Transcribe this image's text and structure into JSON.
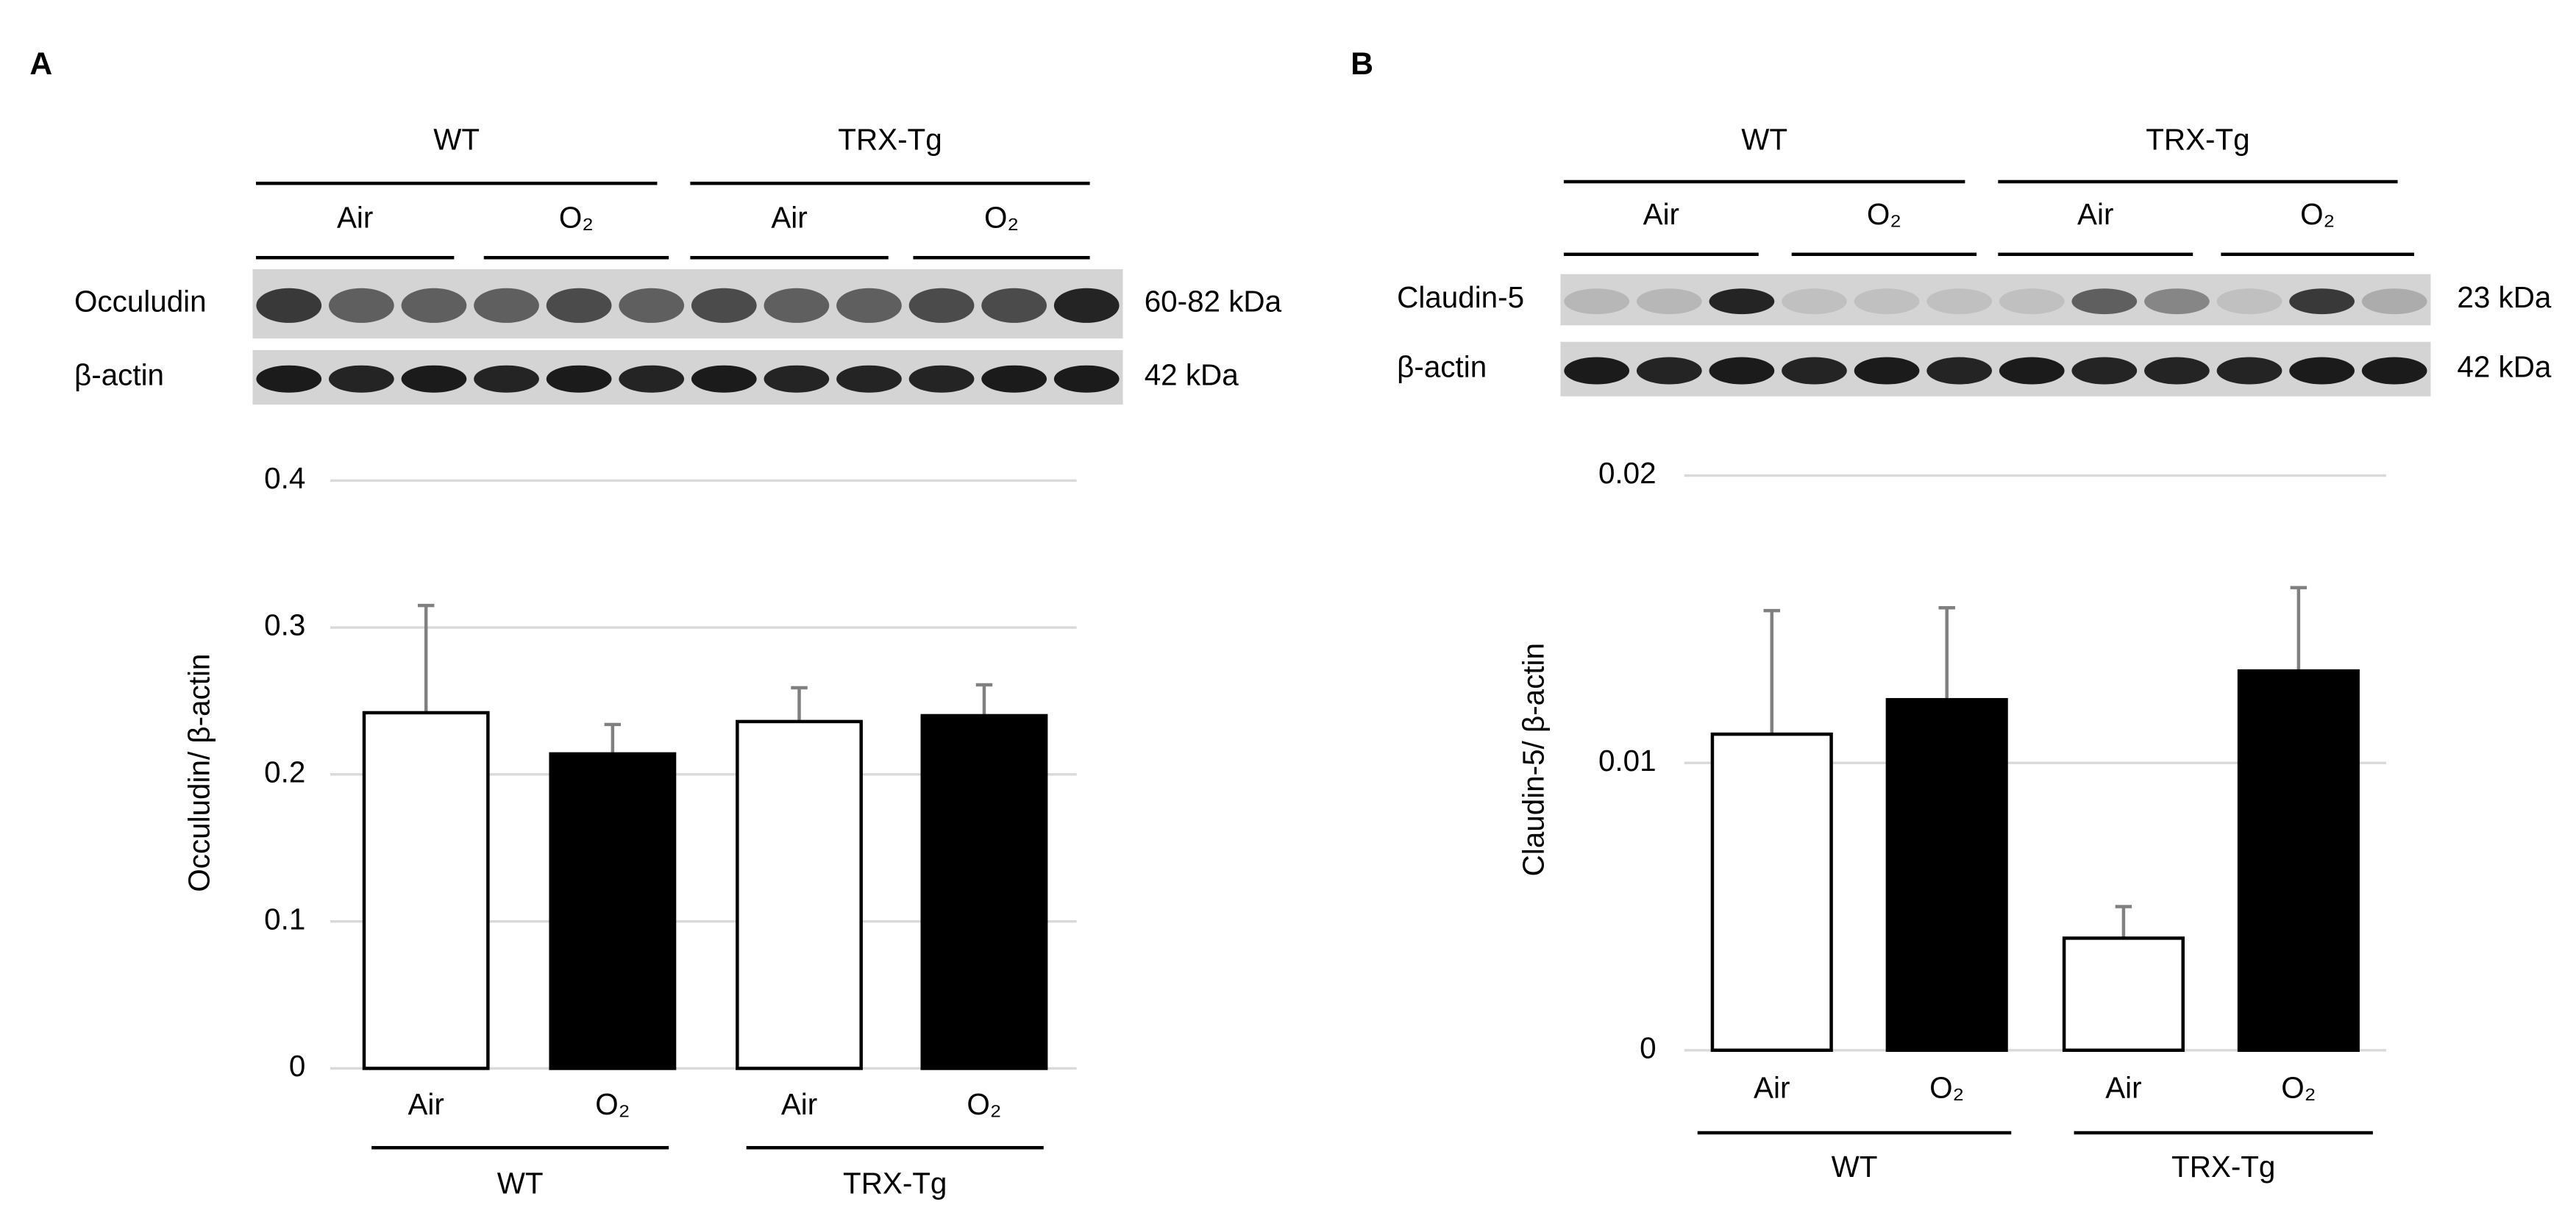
{
  "chart_data": [
    {
      "type": "bar",
      "panel_label": "A",
      "y_label": "Occuludin/ β-actin",
      "categories": [
        "Air",
        "O₂",
        "Air",
        "O₂"
      ],
      "groups": [
        "WT",
        "TRX-Tg"
      ],
      "values": [
        0.242,
        0.214,
        0.236,
        0.24
      ],
      "errors": [
        0.073,
        0.02,
        0.023,
        0.021
      ],
      "colors": [
        "#ffffff",
        "#000000",
        "#ffffff",
        "#000000"
      ],
      "ylim": [
        0,
        0.4
      ],
      "yticks": [
        0,
        0.1,
        0.2,
        0.3,
        0.4
      ],
      "grid": true,
      "blot": {
        "groups": [
          "WT",
          "TRX-Tg"
        ],
        "conditions": [
          "Air",
          "O₂",
          "Air",
          "O₂"
        ],
        "rows": [
          {
            "name": "Occuludin",
            "size": "60-82 kDa"
          },
          {
            "name": "β-actin",
            "size": "42 kDa"
          }
        ]
      }
    },
    {
      "type": "bar",
      "panel_label": "B",
      "y_label": "Claudin-5/ β-actin",
      "categories": [
        "Air",
        "O₂",
        "Air",
        "O₂"
      ],
      "groups": [
        "WT",
        "TRX-Tg"
      ],
      "values": [
        0.011,
        0.0122,
        0.0039,
        0.0132
      ],
      "errors": [
        0.0043,
        0.0032,
        0.0011,
        0.0029
      ],
      "colors": [
        "#ffffff",
        "#000000",
        "#ffffff",
        "#000000"
      ],
      "ylim": [
        0,
        0.02
      ],
      "yticks": [
        0,
        0.01,
        0.02
      ],
      "grid": true,
      "blot": {
        "groups": [
          "WT",
          "TRX-Tg"
        ],
        "conditions": [
          "Air",
          "O₂",
          "Air",
          "O₂"
        ],
        "rows": [
          {
            "name": "Claudin-5",
            "size": "23 kDa"
          },
          {
            "name": "β-actin",
            "size": "42 kDa"
          }
        ]
      }
    }
  ]
}
